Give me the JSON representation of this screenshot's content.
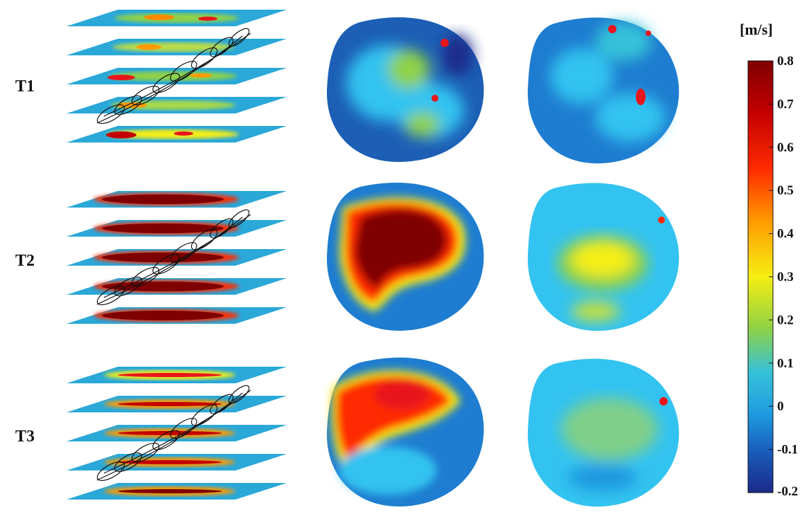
{
  "rows": [
    {
      "label": "T1",
      "level": 0.08
    },
    {
      "label": "T2",
      "level": 0.72
    },
    {
      "label": "T3",
      "level": 0.5
    }
  ],
  "colorbar": {
    "unit": "[m/s]",
    "min": -0.2,
    "max": 0.8,
    "ticks": [
      "0.8",
      "0.7",
      "0.6",
      "0.5",
      "0.4",
      "0.3",
      "0.2",
      "0.1",
      "0",
      "-0.1",
      "-0.2"
    ]
  },
  "colors": {
    "dark_red": "#7f0000",
    "red": "#e8161b",
    "yellow": "#f3ef1c",
    "cyan": "#33c3f0",
    "blue": "#1c5fb5",
    "dark_blue": "#1b2a8a",
    "plane_blue": "#2aa8d8"
  }
}
